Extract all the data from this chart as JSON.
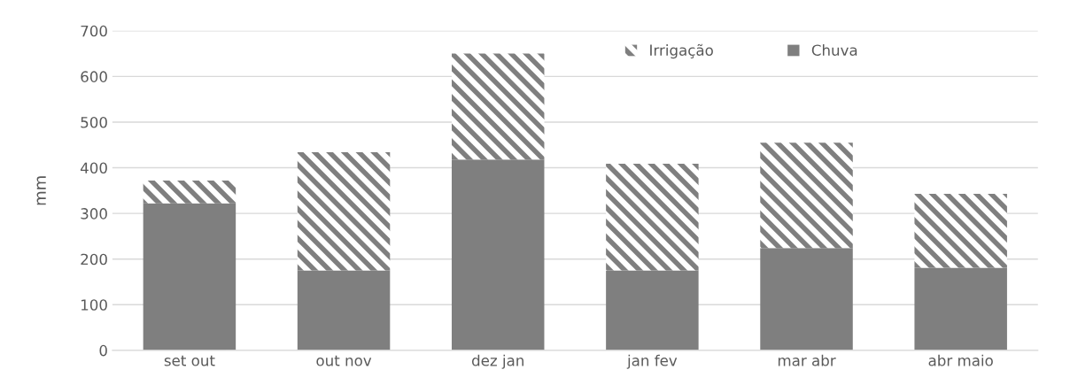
{
  "chart_data": {
    "type": "bar",
    "ylabel": "mm",
    "categories": [
      "set out",
      "out nov",
      "dez jan",
      "jan fev",
      "mar abr",
      "abr maio"
    ],
    "stacked": true,
    "series": [
      {
        "name": "Chuva",
        "color": "#7f7f7f",
        "values": [
          322,
          175,
          418,
          175,
          224,
          181
        ]
      },
      {
        "name": "Irrigação",
        "color": "#7f7f7f",
        "values": [
          50,
          259,
          232,
          234,
          231,
          162
        ]
      }
    ],
    "ylim": [
      0,
      700
    ],
    "yticks": [
      0,
      100,
      200,
      300,
      400,
      500,
      600,
      700
    ],
    "grid": "y",
    "legend": "top right"
  }
}
